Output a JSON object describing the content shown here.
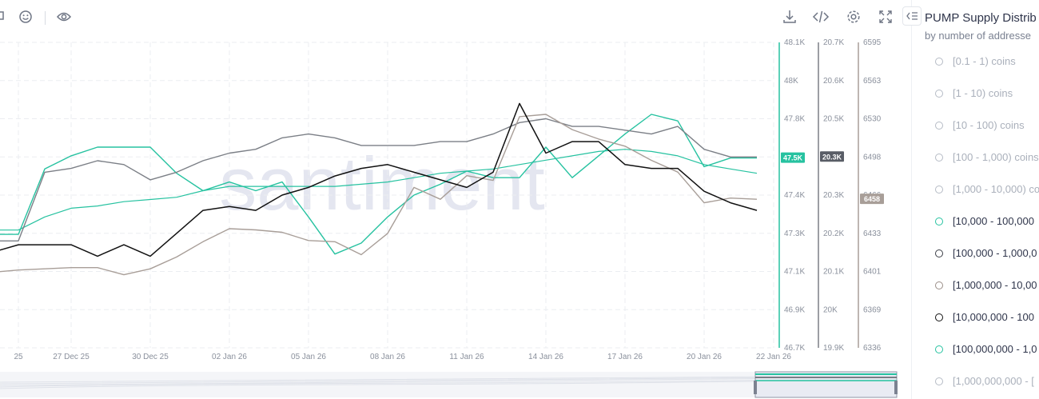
{
  "toolbar": {
    "left_icons": [
      "chat-icon",
      "emoji-icon",
      "eye-icon"
    ],
    "right_icons": [
      "download-icon",
      "embed-code-icon",
      "settings-icon",
      "fullscreen-icon"
    ]
  },
  "watermark": "santiment",
  "panel": {
    "title": "PUMP Supply Distrib",
    "subtitle": "by number of addresse",
    "legend": [
      {
        "label": "[0.1 - 1) coins",
        "active": false,
        "color": "#b5bbc5"
      },
      {
        "label": "[1 - 10) coins",
        "active": false,
        "color": "#b5bbc5"
      },
      {
        "label": "[10 - 100) coins",
        "active": false,
        "color": "#b5bbc5"
      },
      {
        "label": "[100 - 1,000) coins",
        "active": false,
        "color": "#b5bbc5"
      },
      {
        "label": "[1,000 - 10,000) co",
        "active": false,
        "color": "#b5bbc5"
      },
      {
        "label": "[10,000 - 100,000",
        "active": true,
        "color": "#26c2a0"
      },
      {
        "label": "[100,000 - 1,000,0",
        "active": true,
        "color": "#3a3d45"
      },
      {
        "label": "[1,000,000 - 10,00",
        "active": true,
        "color": "#9a8d87"
      },
      {
        "label": "[10,000,000 - 100",
        "active": true,
        "color": "#111111"
      },
      {
        "label": "[100,000,000 - 1,0",
        "active": true,
        "color": "#26c2a0"
      },
      {
        "label": "[1,000,000,000 - [",
        "active": false,
        "color": "#b5bbc5"
      }
    ]
  },
  "chart_data": {
    "type": "line",
    "x_ticks": [
      "25",
      "27 Dec 25",
      "30 Dec 25",
      "02 Jan 26",
      "05 Jan 26",
      "08 Jan 26",
      "11 Jan 26",
      "14 Jan 26",
      "17 Jan 26",
      "20 Jan 26",
      "22 Jan 26"
    ],
    "x": [
      "24 Dec 25",
      "25 Dec 25",
      "26 Dec 25",
      "27 Dec 25",
      "28 Dec 25",
      "29 Dec 25",
      "30 Dec 25",
      "31 Dec 25",
      "01 Jan 26",
      "02 Jan 26",
      "03 Jan 26",
      "04 Jan 26",
      "05 Jan 26",
      "06 Jan 26",
      "07 Jan 26",
      "08 Jan 26",
      "09 Jan 26",
      "10 Jan 26",
      "11 Jan 26",
      "12 Jan 26",
      "13 Jan 26",
      "14 Jan 26",
      "15 Jan 26",
      "16 Jan 26",
      "17 Jan 26",
      "18 Jan 26",
      "19 Jan 26",
      "20 Jan 26",
      "21 Jan 26",
      "22 Jan 26"
    ],
    "axes": [
      {
        "ticks": [
          "48.1K",
          "48K",
          "47.8K",
          "47.6K",
          "47.4K",
          "47.3K",
          "47.1K",
          "46.9K",
          "46.7K"
        ],
        "min": 46700,
        "max": 48100,
        "color": "#26c2a0",
        "badge": "47.5K"
      },
      {
        "ticks": [
          "20.7K",
          "20.6K",
          "20.5K",
          "20.4K",
          "20.3K",
          "20.2K",
          "20.1K",
          "20K",
          "19.9K"
        ],
        "min": 19900,
        "max": 20700,
        "color": "#7b7f86",
        "badge": "20.3K"
      },
      {
        "ticks": [
          "6595",
          "6563",
          "6530",
          "6498",
          "6466",
          "6433",
          "6401",
          "6369",
          "6336"
        ],
        "min": 6336,
        "max": 6595,
        "color": "#a89e98",
        "badge": "6458"
      }
    ],
    "series": [
      {
        "axis": 0,
        "color": "#26c2a0",
        "width": 1.4,
        "values": [
          47220,
          47220,
          47520,
          47580,
          47620,
          47620,
          47620,
          47500,
          47420,
          47460,
          47420,
          47460,
          47300,
          47130,
          47180,
          47300,
          47400,
          47450,
          47510,
          47480,
          47480,
          47620,
          47480,
          47580,
          47680,
          47770,
          47740,
          47530,
          47570,
          47570
        ]
      },
      {
        "axis": 0,
        "color": "#26c2a0",
        "width": 1.2,
        "values": [
          47240,
          47240,
          47300,
          47340,
          47350,
          47370,
          47380,
          47390,
          47420,
          47440,
          47440,
          47440,
          47440,
          47440,
          47450,
          47460,
          47480,
          47500,
          47510,
          47520,
          47540,
          47560,
          47580,
          47600,
          47610,
          47600,
          47580,
          47540,
          47520,
          47500
        ]
      },
      {
        "axis": 1,
        "color": "#7b7f86",
        "width": 1.4,
        "values": [
          20180,
          20180,
          20360,
          20370,
          20390,
          20380,
          20340,
          20360,
          20390,
          20410,
          20420,
          20450,
          20460,
          20450,
          20430,
          20430,
          20430,
          20440,
          20440,
          20460,
          20490,
          20500,
          20480,
          20480,
          20470,
          20460,
          20480,
          20420,
          20400,
          20400
        ]
      },
      {
        "axis": 2,
        "color": "#a89e98",
        "width": 1.4,
        "values": [
          6400,
          6402,
          6403,
          6404,
          6404,
          6398,
          6403,
          6413,
          6426,
          6437,
          6436,
          6434,
          6427,
          6426,
          6415,
          6433,
          6472,
          6462,
          6482,
          6478,
          6532,
          6534,
          6521,
          6513,
          6507,
          6495,
          6485,
          6459,
          6463,
          6462
        ]
      },
      {
        "axis": 1,
        "color": "#111111",
        "width": 1.5,
        "values": [
          20150,
          20170,
          20170,
          20170,
          20140,
          20170,
          20140,
          20200,
          20260,
          20270,
          20260,
          20300,
          20320,
          20350,
          20370,
          20380,
          20360,
          20340,
          20320,
          20360,
          20540,
          20410,
          20440,
          20440,
          20380,
          20370,
          20370,
          20310,
          20280,
          20260
        ]
      }
    ]
  }
}
